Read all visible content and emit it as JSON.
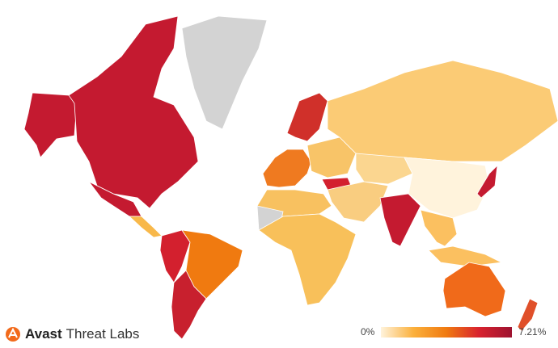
{
  "brand": {
    "name": "Avast",
    "subtitle": "Threat Labs",
    "logo_color": "#f26a1b"
  },
  "legend": {
    "min_label": "0%",
    "max_label": "7.21%",
    "min_value": 0,
    "max_value": 7.21,
    "gradient": [
      "#fff3dc",
      "#fbb03b",
      "#f07a10",
      "#d8222f",
      "#9e1330"
    ]
  },
  "no_data_color": "#d3d3d3",
  "regions": [
    {
      "name": "North America (Canada, USA)",
      "color": "#c41a30"
    },
    {
      "name": "Alaska",
      "color": "#c41a30"
    },
    {
      "name": "Mexico",
      "color": "#c41a30"
    },
    {
      "name": "Greenland",
      "color": "#d3d3d3"
    },
    {
      "name": "Central America",
      "color": "#f8b84a"
    },
    {
      "name": "Brazil",
      "color": "#f07a10"
    },
    {
      "name": "Andes (Peru, Colombia)",
      "color": "#d3202e"
    },
    {
      "name": "Southern Cone (Chile, Argentina)",
      "color": "#c8202e"
    },
    {
      "name": "Russia",
      "color": "#fbcb75"
    },
    {
      "name": "Scandinavia",
      "color": "#d0302a"
    },
    {
      "name": "Western Europe",
      "color": "#ef7a20"
    },
    {
      "name": "Eastern Europe",
      "color": "#f8c468"
    },
    {
      "name": "Turkey",
      "color": "#d3202e"
    },
    {
      "name": "Middle East",
      "color": "#f9cd80"
    },
    {
      "name": "Central Asia",
      "color": "#fbd690"
    },
    {
      "name": "China",
      "color": "#fff3dc"
    },
    {
      "name": "India",
      "color": "#c41a30"
    },
    {
      "name": "Southeast Asia",
      "color": "#fbc060"
    },
    {
      "name": "Japan",
      "color": "#c41a30"
    },
    {
      "name": "North Africa",
      "color": "#f8c160"
    },
    {
      "name": "Sahara (no data)",
      "color": "#d3d3d3"
    },
    {
      "name": "Sub-Saharan Africa",
      "color": "#f8c05a"
    },
    {
      "name": "Australia",
      "color": "#f06a1a"
    },
    {
      "name": "New Zealand",
      "color": "#e0502a"
    },
    {
      "name": "Indonesia",
      "color": "#fbc060"
    }
  ]
}
